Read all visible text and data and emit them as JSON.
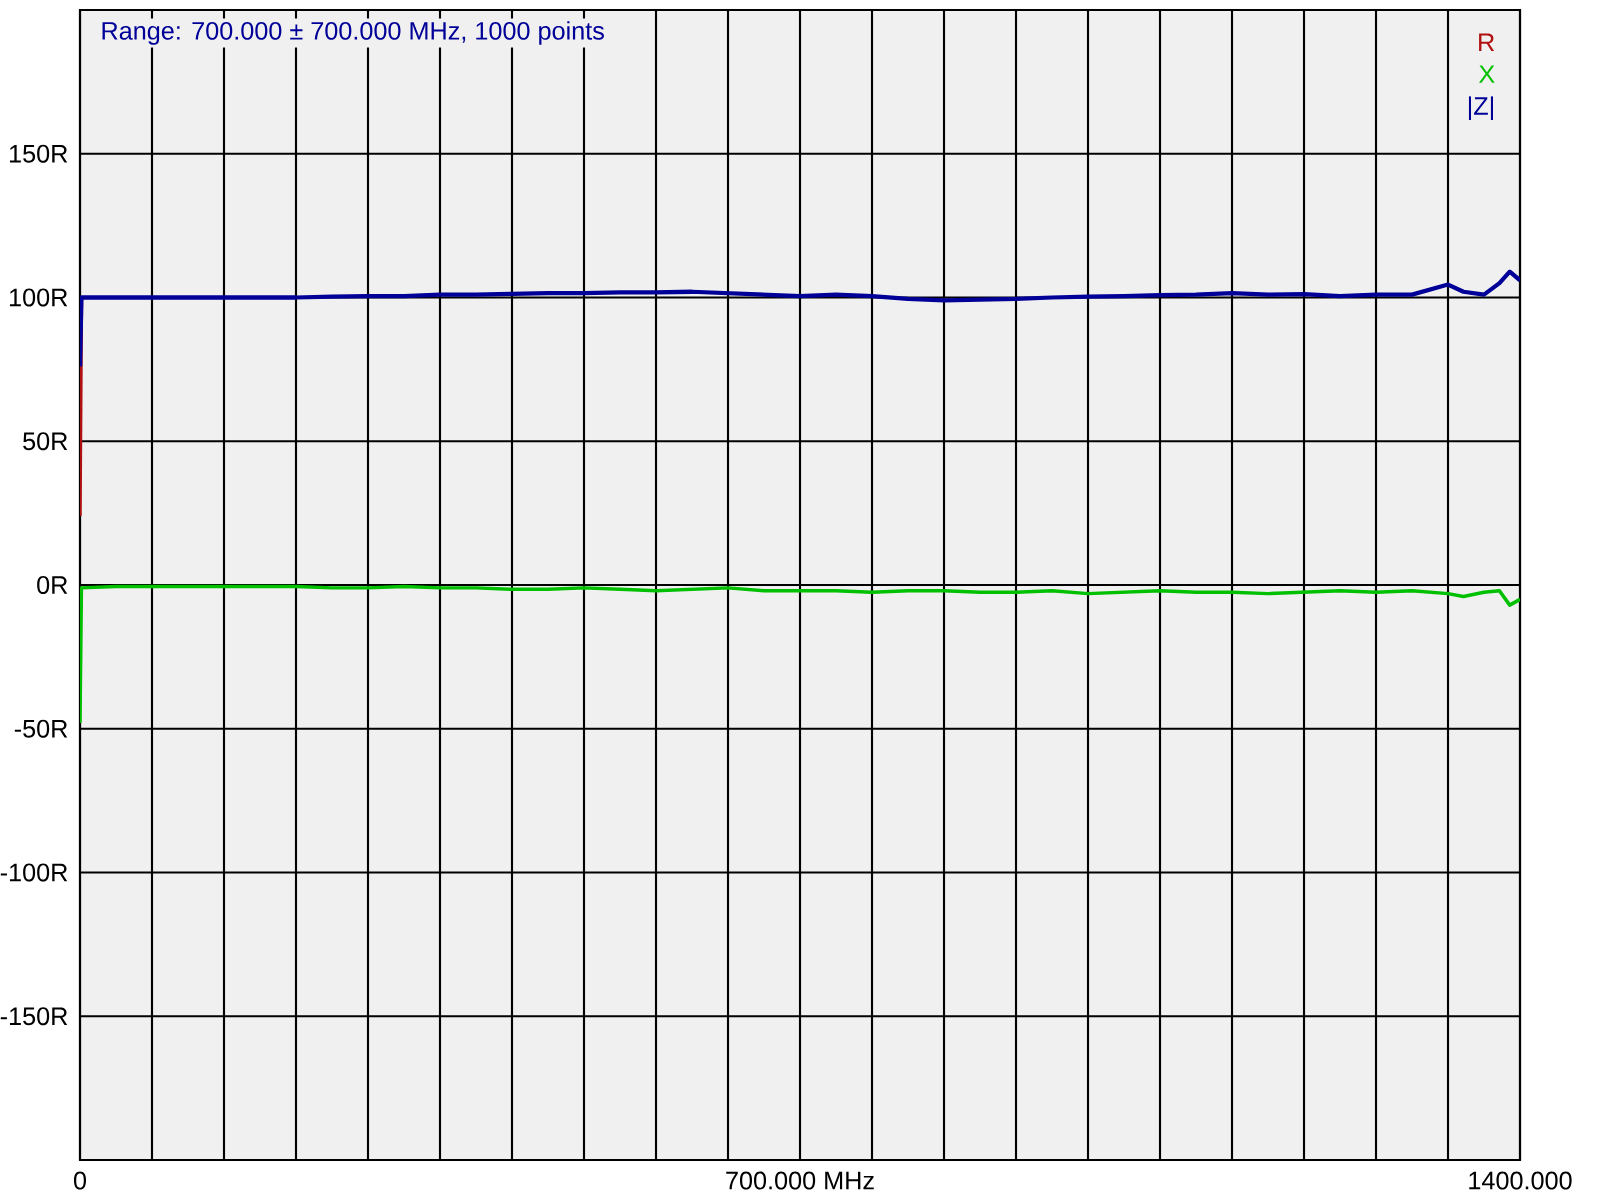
{
  "chart_data": {
    "type": "line",
    "annotations": [
      "Range: 700.000 ± 700.000 MHz, 1000 points"
    ],
    "x": [
      0,
      1.4,
      35,
      70,
      105,
      140,
      175,
      210,
      245,
      280,
      315,
      350,
      385,
      420,
      455,
      490,
      525,
      560,
      595,
      630,
      665,
      700,
      735,
      770,
      805,
      840,
      875,
      910,
      945,
      980,
      1015,
      1050,
      1085,
      1120,
      1155,
      1190,
      1225,
      1260,
      1295,
      1330,
      1345,
      1365,
      1380,
      1390,
      1400
    ],
    "series": [
      {
        "name": "R",
        "color": "#b01010",
        "values": [
          24,
          100,
          null,
          null,
          null,
          null,
          null,
          null,
          null,
          null,
          null,
          null,
          null,
          null,
          null,
          null,
          null,
          null,
          null,
          null,
          null,
          null,
          null,
          null,
          null,
          null,
          null,
          null,
          null,
          null,
          null,
          null,
          null,
          null,
          null,
          null,
          null,
          null,
          null,
          null,
          null,
          null,
          null,
          null,
          null
        ]
      },
      {
        "name": "X",
        "color": "#00c000",
        "values": [
          -48,
          -1,
          -0.5,
          -0.5,
          -0.5,
          -0.5,
          -0.5,
          -0.5,
          -1,
          -1,
          -0.5,
          -1,
          -1,
          -1.5,
          -1.5,
          -1,
          -1.5,
          -2,
          -1.5,
          -1,
          -2,
          -2,
          -2,
          -2.5,
          -2,
          -2,
          -2.5,
          -2.5,
          -2,
          -3,
          -2.5,
          -2,
          -2.5,
          -2.5,
          -3,
          -2.5,
          -2,
          -2.5,
          -2,
          -3,
          -4,
          -2.5,
          -2,
          -7,
          -5
        ]
      },
      {
        "name": "|Z|",
        "color": "#000099",
        "values": [
          76,
          100,
          100,
          100,
          100,
          100,
          100,
          100,
          100.3,
          100.5,
          100.5,
          101,
          101,
          101.3,
          101.5,
          101.5,
          101.8,
          101.8,
          102,
          101.5,
          101,
          100.5,
          101,
          100.5,
          99.5,
          99,
          99.3,
          99.5,
          100,
          100.3,
          100.5,
          100.8,
          101,
          101.5,
          101,
          101.2,
          100.5,
          101,
          101,
          104.5,
          102,
          101,
          105,
          109,
          106
        ]
      }
    ],
    "xlim": [
      0,
      1400
    ],
    "xticks": [
      {
        "value": 0,
        "label": "0"
      },
      {
        "value": 70,
        "label": null
      },
      {
        "value": 140,
        "label": null
      },
      {
        "value": 210,
        "label": null
      },
      {
        "value": 280,
        "label": null
      },
      {
        "value": 350,
        "label": null
      },
      {
        "value": 420,
        "label": null
      },
      {
        "value": 490,
        "label": null
      },
      {
        "value": 560,
        "label": null
      },
      {
        "value": 630,
        "label": null
      },
      {
        "value": 700,
        "label": "700.000 MHz"
      },
      {
        "value": 770,
        "label": null
      },
      {
        "value": 840,
        "label": null
      },
      {
        "value": 910,
        "label": null
      },
      {
        "value": 980,
        "label": null
      },
      {
        "value": 1050,
        "label": null
      },
      {
        "value": 1120,
        "label": null
      },
      {
        "value": 1190,
        "label": null
      },
      {
        "value": 1260,
        "label": null
      },
      {
        "value": 1330,
        "label": null
      },
      {
        "value": 1400,
        "label": "1400.000"
      }
    ],
    "ylim": [
      -200,
      200
    ],
    "yticks": [
      {
        "value": -150,
        "label": "-150R"
      },
      {
        "value": -100,
        "label": "-100R"
      },
      {
        "value": -50,
        "label": "-50R"
      },
      {
        "value": 0,
        "label": "0R"
      },
      {
        "value": 50,
        "label": "50R"
      },
      {
        "value": 100,
        "label": "100R"
      },
      {
        "value": 150,
        "label": "150R"
      }
    ],
    "grid": true,
    "legend": "top right",
    "marker": "none",
    "line_style": "solid"
  }
}
